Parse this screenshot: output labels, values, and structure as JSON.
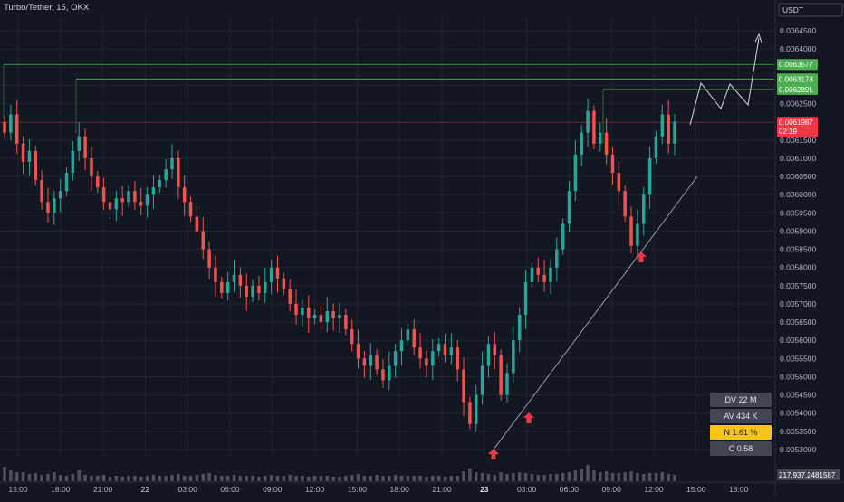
{
  "title": "Turbo/Tether, 15, OKX",
  "currency": "USDT",
  "colors": {
    "up": "#26a69a",
    "down": "#ef5350",
    "bg": "#131722",
    "grid": "#1f2430",
    "text": "#b2b5be",
    "resistance": "#4caf50",
    "lastPrice": "#f23645",
    "arrow": "#f23645"
  },
  "stats": [
    {
      "label": "DV 22 M",
      "style": "gray"
    },
    {
      "label": "AV 434 K",
      "style": "gray"
    },
    {
      "label": "N 1.61 %",
      "style": "yellow"
    },
    {
      "label": "C  0.58",
      "style": "gray"
    }
  ],
  "volume_label": "217,937.2481587",
  "chart_data": {
    "type": "candlestick",
    "title": "Turbo/Tether, 15, OKX",
    "ylabel": "USDT",
    "y_ticks": [
      "0.0064500",
      "0.0064000",
      "0.0063500",
      "0.0063000",
      "0.0062500",
      "0.0062000",
      "0.0061500",
      "0.0061000",
      "0.0060500",
      "0.0060000",
      "0.0059500",
      "0.0059000",
      "0.0058500",
      "0.0058000",
      "0.0057500",
      "0.0057000",
      "0.0056500",
      "0.0056000",
      "0.0055500",
      "0.0055000",
      "0.0054500",
      "0.0054000",
      "0.0053500",
      "0.0053000"
    ],
    "x_ticks": [
      "15:00",
      "18:00",
      "21:00",
      "22",
      "03:00",
      "06:00",
      "09:00",
      "12:00",
      "15:00",
      "18:00",
      "21:00",
      "23",
      "03:00",
      "06:00",
      "09:00",
      "12:00",
      "15:00",
      "18:00"
    ],
    "ylim": [
      0.00528,
      0.00649
    ],
    "last_price": {
      "label": "0.0061987",
      "countdown": "02:39",
      "value": 0.0061987
    },
    "resistance_levels": [
      {
        "label": "0.0063577",
        "value": 0.0063577
      },
      {
        "label": "0.0063178",
        "value": 0.0063178
      },
      {
        "label": "0.0062891",
        "value": 0.0062891
      }
    ],
    "closes": [
      0.00617,
      0.00622,
      0.00614,
      0.00609,
      0.00612,
      0.00604,
      0.00598,
      0.00595,
      0.00599,
      0.00601,
      0.00606,
      0.00612,
      0.00616,
      0.0061,
      0.00605,
      0.00602,
      0.00598,
      0.00596,
      0.00599,
      0.00598,
      0.00601,
      0.00598,
      0.00597,
      0.006,
      0.00602,
      0.00604,
      0.00607,
      0.0061,
      0.00602,
      0.00598,
      0.00594,
      0.0059,
      0.00585,
      0.0058,
      0.00576,
      0.00573,
      0.00576,
      0.00578,
      0.00575,
      0.00572,
      0.00575,
      0.00573,
      0.00576,
      0.0058,
      0.00577,
      0.00574,
      0.0057,
      0.00567,
      0.00569,
      0.00566,
      0.00567,
      0.00565,
      0.00568,
      0.00566,
      0.00567,
      0.00563,
      0.00559,
      0.00555,
      0.00553,
      0.00556,
      0.00552,
      0.00549,
      0.00553,
      0.00557,
      0.0056,
      0.00563,
      0.00558,
      0.00555,
      0.00553,
      0.00557,
      0.00559,
      0.00556,
      0.00558,
      0.00552,
      0.00543,
      0.00537,
      0.00545,
      0.00553,
      0.00559,
      0.00556,
      0.00545,
      0.00551,
      0.0056,
      0.00567,
      0.00576,
      0.0058,
      0.00578,
      0.00576,
      0.0058,
      0.00585,
      0.00592,
      0.00601,
      0.00611,
      0.00617,
      0.00623,
      0.00614,
      0.00617,
      0.00611,
      0.00606,
      0.00601,
      0.00594,
      0.00586,
      0.00592,
      0.006,
      0.0061,
      0.00616,
      0.00622,
      0.00614,
      0.0062
    ],
    "volumes": [
      0.8,
      0.6,
      0.5,
      0.5,
      0.4,
      0.45,
      0.35,
      0.4,
      0.5,
      0.35,
      0.3,
      0.4,
      0.6,
      0.35,
      0.3,
      0.3,
      0.35,
      0.25,
      0.3,
      0.25,
      0.3,
      0.3,
      0.25,
      0.3,
      0.35,
      0.3,
      0.3,
      0.35,
      0.4,
      0.3,
      0.3,
      0.35,
      0.4,
      0.45,
      0.35,
      0.3,
      0.3,
      0.35,
      0.3,
      0.3,
      0.3,
      0.25,
      0.3,
      0.35,
      0.3,
      0.3,
      0.35,
      0.3,
      0.3,
      0.25,
      0.3,
      0.3,
      0.3,
      0.25,
      0.25,
      0.3,
      0.35,
      0.4,
      0.3,
      0.3,
      0.35,
      0.3,
      0.3,
      0.35,
      0.3,
      0.3,
      0.3,
      0.3,
      0.25,
      0.3,
      0.3,
      0.25,
      0.3,
      0.3,
      0.55,
      0.7,
      0.5,
      0.45,
      0.4,
      0.35,
      0.5,
      0.4,
      0.45,
      0.5,
      0.45,
      0.4,
      0.35,
      0.35,
      0.4,
      0.4,
      0.45,
      0.5,
      0.6,
      0.7,
      0.9,
      0.6,
      0.5,
      0.55,
      0.45,
      0.45,
      0.5,
      0.55,
      0.45,
      0.4,
      0.45,
      0.45,
      0.5,
      0.4,
      0.35
    ]
  }
}
